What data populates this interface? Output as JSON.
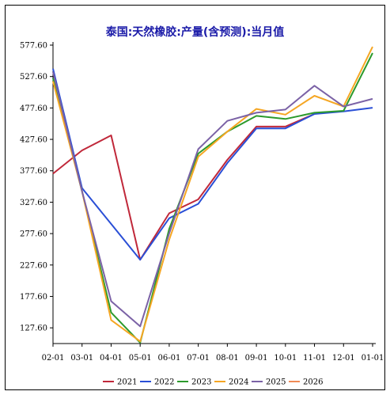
{
  "chart_data": {
    "type": "line",
    "title": "泰国:天然橡胶:产量(含预测):当月值",
    "xlabel": "",
    "ylabel": "",
    "categories": [
      "02-01",
      "03-01",
      "04-01",
      "05-01",
      "06-01",
      "07-01",
      "08-01",
      "09-01",
      "10-01",
      "11-01",
      "12-01",
      "01-01"
    ],
    "y_ticks": [
      "127.60",
      "177.60",
      "227.60",
      "277.60",
      "327.60",
      "377.60",
      "427.60",
      "477.60",
      "527.60",
      "577.60"
    ],
    "ylim": [
      102.6,
      577.6
    ],
    "grid": false,
    "legend_position": "bottom",
    "series": [
      {
        "name": "2021",
        "color": "#c0283a",
        "values": [
          373,
          410,
          434,
          236,
          310,
          332,
          395,
          448,
          448,
          468,
          null,
          null
        ]
      },
      {
        "name": "2022",
        "color": "#2a4fd6",
        "values": [
          540,
          350,
          293,
          236,
          302,
          325,
          390,
          445,
          445,
          468,
          472,
          478
        ]
      },
      {
        "name": "2023",
        "color": "#2c9a2c",
        "values": [
          525,
          345,
          152,
          104,
          285,
          405,
          440,
          465,
          460,
          470,
          473,
          565
        ]
      },
      {
        "name": "2024",
        "color": "#f5a623",
        "values": [
          520,
          345,
          140,
          106,
          268,
          400,
          440,
          476,
          467,
          497,
          480,
          575
        ]
      },
      {
        "name": "2025",
        "color": "#7b62a6",
        "values": [
          535,
          345,
          170,
          130,
          278,
          412,
          457,
          470,
          475,
          513,
          480,
          492
        ]
      },
      {
        "name": "2026",
        "color": "#f08a55",
        "values": [
          545,
          null,
          null,
          null,
          null,
          null,
          null,
          null,
          null,
          null,
          null,
          null
        ]
      }
    ]
  }
}
